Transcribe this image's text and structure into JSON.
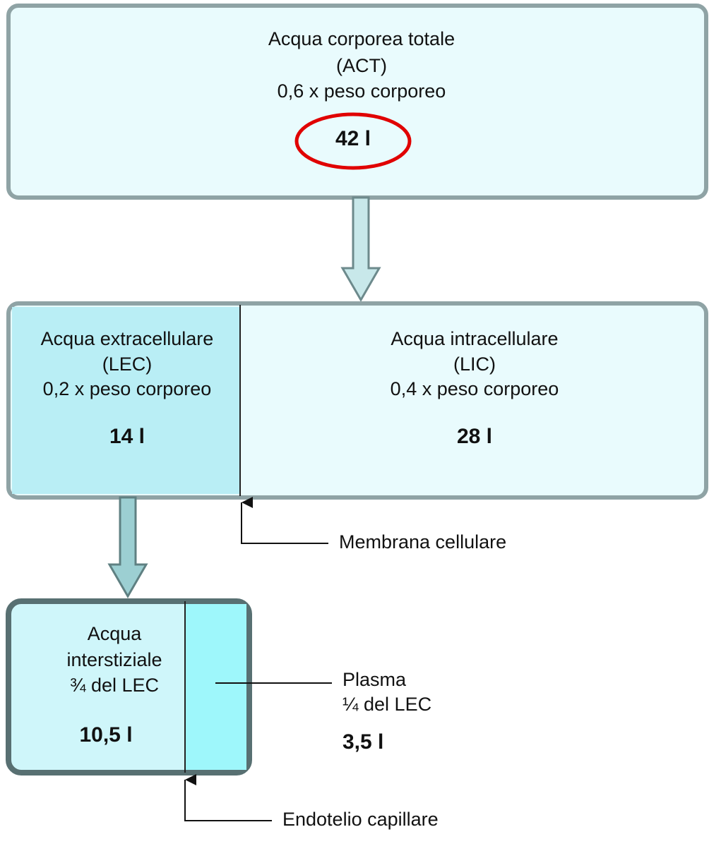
{
  "nodes": [
    {
      "lines": [
        "Acqua corporea totale",
        "(ACT)",
        "0,6 x peso corporeo"
      ],
      "amount": "42 l"
    },
    {
      "lines": [
        "Acqua extracellulare",
        "(LEC)",
        "0,2 x peso corporeo"
      ],
      "amount": "14 l"
    },
    {
      "lines": [
        "Acqua intracellulare",
        "(LIC)",
        "0,4 x peso corporeo"
      ],
      "amount": "28 l"
    },
    {
      "lines": [
        "Acqua",
        "interstiziale",
        "¾ del LEC"
      ],
      "amount": "10,5 l"
    },
    {
      "lines": [
        "Plasma",
        "¼ del LEC"
      ],
      "amount": "3,5 l"
    }
  ],
  "labels": [
    "Membrana cellulare",
    "Endotelio capillare"
  ]
}
